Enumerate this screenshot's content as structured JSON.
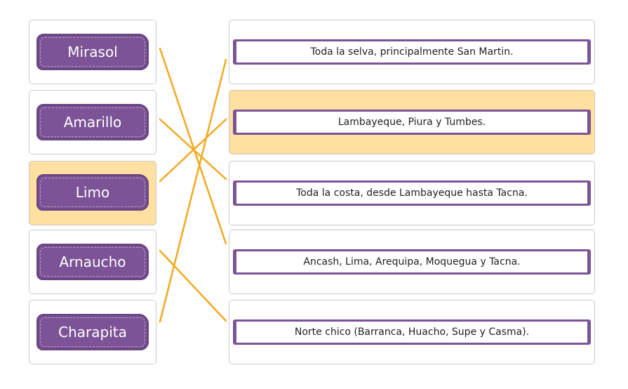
{
  "left_items": [
    {
      "label": "Mirasol",
      "selected": false
    },
    {
      "label": "Amarillo",
      "selected": false
    },
    {
      "label": "Limo",
      "selected": true
    },
    {
      "label": "Arnaucho",
      "selected": false
    },
    {
      "label": "Charapita",
      "selected": false
    }
  ],
  "right_items": [
    {
      "label": "Toda la selva, principalmente San Martin.",
      "selected": false
    },
    {
      "label": "Lambayeque, Piura y Tumbes.",
      "selected": true
    },
    {
      "label": "Toda la costa, desde Lambayeque hasta Tacna.",
      "selected": false
    },
    {
      "label": "Ancash, Lima, Arequipa, Moquegua y Tacna.",
      "selected": false
    },
    {
      "label": "Norte chico (Barranca, Huacho, Supe y Casma).",
      "selected": false
    }
  ],
  "matches": [
    {
      "left": "Mirasol",
      "right": "Ancash, Lima, Arequipa, Moquegua y Tacna."
    },
    {
      "left": "Amarillo",
      "right": "Toda la costa, desde Lambayeque hasta Tacna."
    },
    {
      "left": "Limo",
      "right": "Lambayeque, Piura y Tumbes."
    },
    {
      "left": "Arnaucho",
      "right": "Norte chico (Barranca, Huacho, Supe y Casma)."
    },
    {
      "left": "Charapita",
      "right": "Toda la selva, principalmente San Martin."
    }
  ],
  "colors": {
    "pill": "#7c5396",
    "connector": "#f5a81d",
    "selected_bg": "#ffe0a0"
  }
}
